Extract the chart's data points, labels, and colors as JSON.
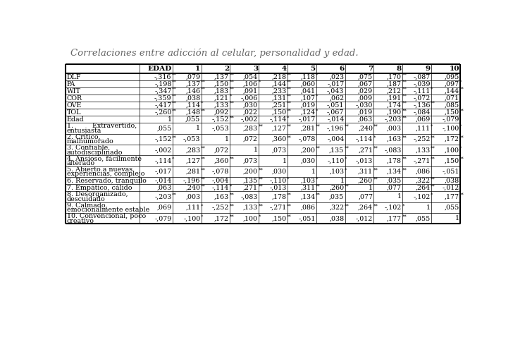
{
  "title": "Correlaciones entre adicción al celular, personalidad y edad.",
  "col_headers": [
    "",
    "EDAD",
    "1",
    "2",
    "3",
    "4",
    "5",
    "6",
    "7",
    "8",
    "9",
    "10"
  ],
  "rows": [
    {
      "label": "DLF",
      "values": [
        "-,316**",
        ",079",
        ",137**",
        ",054",
        ",218**",
        ",118*",
        ",023",
        ",075",
        ",170**",
        "-,087",
        ",095"
      ],
      "multiline": false
    },
    {
      "label": "PA",
      "values": [
        "-,198**",
        ",137**",
        ",150**",
        ",106*",
        ",144**",
        ",060",
        "-,017",
        ",067",
        ",187**",
        "-,039",
        ",097*"
      ],
      "multiline": false
    },
    {
      "label": "WIT",
      "values": [
        "-,347**",
        ",146**",
        ",183**",
        ",091",
        ",233**",
        ",041",
        "-,043",
        ",029",
        ",212**",
        "-,111*",
        ",144**"
      ],
      "multiline": false
    },
    {
      "label": "COR",
      "values": [
        "-,359**",
        ",038",
        ",121*",
        "-,006",
        ",131**",
        ",107*",
        ",062",
        ",009",
        ",191**",
        "-,072",
        ",071"
      ],
      "multiline": false
    },
    {
      "label": "OVE",
      "values": [
        "-,417**",
        ",114*",
        ",133**",
        ",030",
        ",251**",
        ",019",
        "-,051",
        "-,030",
        ",174**",
        "-,136**",
        ",085"
      ],
      "multiline": false
    },
    {
      "label": "TOL",
      "values": [
        "-,260**",
        ",148**",
        ",092",
        ",022",
        ",150**",
        ",124*",
        "-,067",
        ",019",
        ",190**",
        "-,084",
        ",150**"
      ],
      "multiline": false
    },
    {
      "label": "Edad",
      "values": [
        "1",
        ",055",
        "-,152**",
        "-,002",
        "-,114*",
        "-,017",
        "-,014",
        ",063",
        "-,203**",
        ",069",
        "-,079"
      ],
      "multiline": false
    },
    {
      "label": "1.         Extravertido,\nentusiasta",
      "values": [
        ",055",
        "1",
        "-,053",
        ",283**",
        ",127**",
        ",281**",
        "-,196**",
        ",240**",
        ",003",
        ",111*",
        "-,100*"
      ],
      "multiline": true
    },
    {
      "label": "2. Crítico,\nmalhumorado",
      "values": [
        "-,152**",
        "-,053",
        "1",
        ",072",
        ",360**",
        "-,078",
        "-,004",
        "-,114*",
        ",163**",
        "-,252**",
        ",172**"
      ],
      "multiline": true
    },
    {
      "label": "3. Confiable,\nautodisciplinado",
      "values": [
        "-,002",
        ",283**",
        ",072",
        "1",
        ",073",
        ",200**",
        ",135**",
        ",271**",
        "-,083",
        ",133**",
        ",100*"
      ],
      "multiline": true
    },
    {
      "label": "4. Ansioso, fácilmente\nalterado",
      "values": [
        "-,114*",
        ",127**",
        ",360**",
        ",073",
        "1",
        ",030",
        "-,110*",
        "-,013",
        ",178**",
        "-,271**",
        ",150**"
      ],
      "multiline": true
    },
    {
      "label": "5. Abierto a nuevas\nexperiencias, complejo",
      "values": [
        "-,017",
        ",281**",
        "-,078",
        ",200**",
        ",030",
        "1",
        ",103*",
        ",311**",
        ",134**",
        ",086",
        "-,051"
      ],
      "multiline": true
    },
    {
      "label": "6. Reservado, tranquilo",
      "values": [
        "-,014",
        "-,196**",
        "-,004",
        ",135**",
        "-,110*",
        ",103*",
        "1",
        ",260**",
        ",035",
        ",322**",
        ",038"
      ],
      "multiline": false
    },
    {
      "label": "7. Empático, cálido",
      "values": [
        ",063",
        ",240**",
        "-,114*",
        ",271**",
        "-,013",
        ",311**",
        ",260**",
        "1",
        ",077",
        ",264**",
        "-,012"
      ],
      "multiline": false
    },
    {
      "label": "8. Desorganizado,\ndescuidado",
      "values": [
        "-,203**",
        ",003",
        ",163**",
        "-,083",
        ",178**",
        ",134**",
        ",035",
        ",077",
        "1",
        "-,102*",
        ",177**"
      ],
      "multiline": true
    },
    {
      "label": "9. Calmado,\nemocionalmente estable",
      "values": [
        ",069",
        ",111*",
        "-,252**",
        ",133**",
        "-,271**",
        ",086",
        ",322**",
        ",264**",
        "-,102*",
        "1",
        ",055"
      ],
      "multiline": true
    },
    {
      "label": "10. Convencional, poco\ncreativo",
      "values": [
        "-,079",
        "-,100*",
        ",172**",
        ",100*",
        ",150**",
        "-,051",
        ",038",
        "-,012",
        ",177**",
        ",055",
        "1"
      ],
      "multiline": true
    }
  ],
  "bg_color": "#ffffff",
  "border_color": "#000000",
  "text_color": "#000000",
  "title_color": "#666666",
  "font_size": 6.8,
  "header_font_size": 7.5,
  "title_font_size": 9.5
}
